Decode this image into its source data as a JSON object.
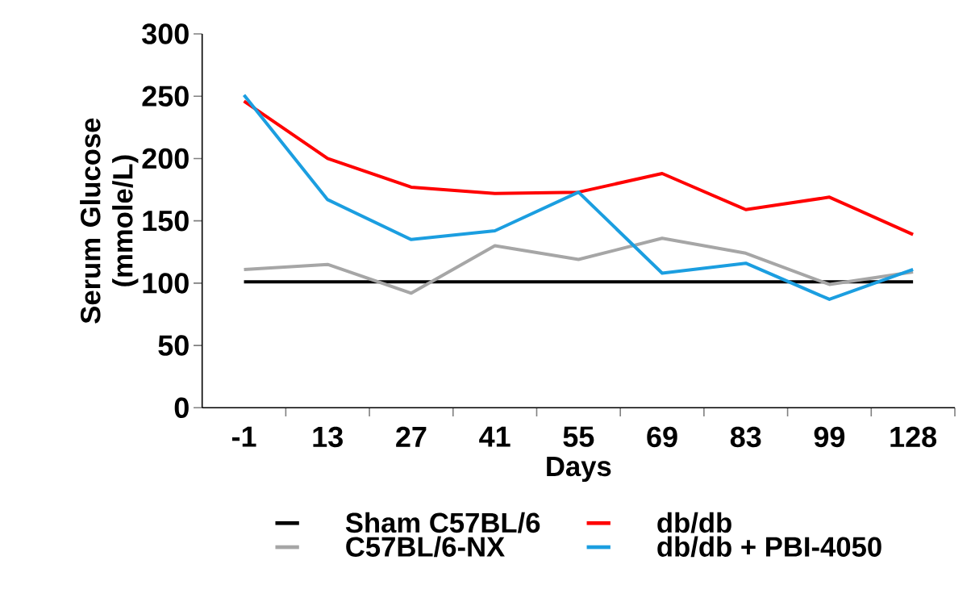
{
  "chart_data": {
    "type": "line",
    "xlabel": "Days",
    "ylabel": "Serum Glucose (mmole/L)",
    "categories": [
      "-1",
      "13",
      "27",
      "41",
      "55",
      "69",
      "83",
      "99",
      "128"
    ],
    "series": [
      {
        "name": "Sham C57BL/6",
        "color": "#000000",
        "values": [
          101,
          101,
          101,
          101,
          101,
          101,
          101,
          101,
          101
        ]
      },
      {
        "name": "db/db",
        "color": "#ff0000",
        "values": [
          246,
          200,
          177,
          172,
          173,
          188,
          159,
          169,
          139
        ]
      },
      {
        "name": "C57BL/6-NX",
        "color": "#a6a6a6",
        "values": [
          111,
          115,
          92,
          130,
          119,
          136,
          124,
          99,
          109
        ]
      },
      {
        "name": "db/db + PBI-4050",
        "color": "#1b9ee0",
        "values": [
          251,
          167,
          135,
          142,
          173,
          108,
          116,
          87,
          111
        ]
      }
    ],
    "ylim": [
      0,
      300
    ],
    "yticks": [
      0,
      50,
      100,
      150,
      200,
      250,
      300
    ],
    "legend": "bottom",
    "grid": false,
    "marker": "none",
    "line_style": "solid"
  }
}
